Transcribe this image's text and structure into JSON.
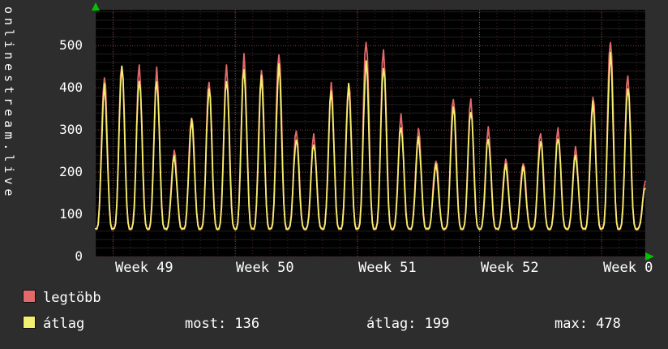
{
  "colors": {
    "background": "#2d2d2d",
    "plot_background": "#000000",
    "text": "#ffffff",
    "grid_minor": "#1e1e1e",
    "grid_day_red": "#4a2424",
    "grid_major_red": "#884444",
    "axis_arrow_green": "#00c400",
    "series_legtobb": "#e4696b",
    "series_atlag": "#f3ef70"
  },
  "chart_data": {
    "type": "line",
    "title": "",
    "ylabel": "onlinestream.live",
    "xlabel": "",
    "x_week_labels": [
      "Week 49",
      "Week 50",
      "Week 51",
      "Week 52",
      "Week 0"
    ],
    "week_line_days": [
      1,
      8,
      15,
      22,
      29
    ],
    "y_ticks": [
      0,
      100,
      200,
      300,
      400,
      500
    ],
    "ylim": [
      0,
      585
    ],
    "grid": "red dotted major lines, dark minor lines, black plot background",
    "legend_position": "bottom-left",
    "pattern": "daily cycles: each day rises from baseline to a peak and returns to baseline",
    "baseline_min": 65,
    "series": [
      {
        "name": "legtöbb",
        "color": "#e4696b",
        "daily_peaks": [
          430,
          462,
          452,
          438,
          250,
          335,
          420,
          448,
          470,
          442,
          490,
          300,
          285,
          405,
          415,
          520,
          490,
          330,
          300,
          230,
          380,
          370,
          300,
          230,
          225,
          295,
          300,
          255,
          380,
          520,
          430,
          175
        ]
      },
      {
        "name": "átlag",
        "color": "#f3ef70",
        "daily_peaks": [
          400,
          450,
          425,
          420,
          235,
          320,
          400,
          425,
          445,
          420,
          450,
          280,
          270,
          390,
          400,
          460,
          455,
          310,
          280,
          215,
          355,
          350,
          280,
          215,
          210,
          275,
          285,
          240,
          360,
          478,
          405,
          165
        ]
      }
    ],
    "stats": {
      "most": 136,
      "átlag": 199,
      "max": 478
    }
  },
  "legend": {
    "items": [
      {
        "label": "legtöbb",
        "color": "#e4696b"
      },
      {
        "label": "átlag",
        "color": "#f3ef70"
      }
    ],
    "stats": [
      {
        "label": "most",
        "value": "136",
        "text": "most: 136"
      },
      {
        "label": "átlag",
        "value": "199",
        "text": "átlag: 199"
      },
      {
        "label": "max",
        "value": "478",
        "text": "max: 478"
      }
    ]
  }
}
